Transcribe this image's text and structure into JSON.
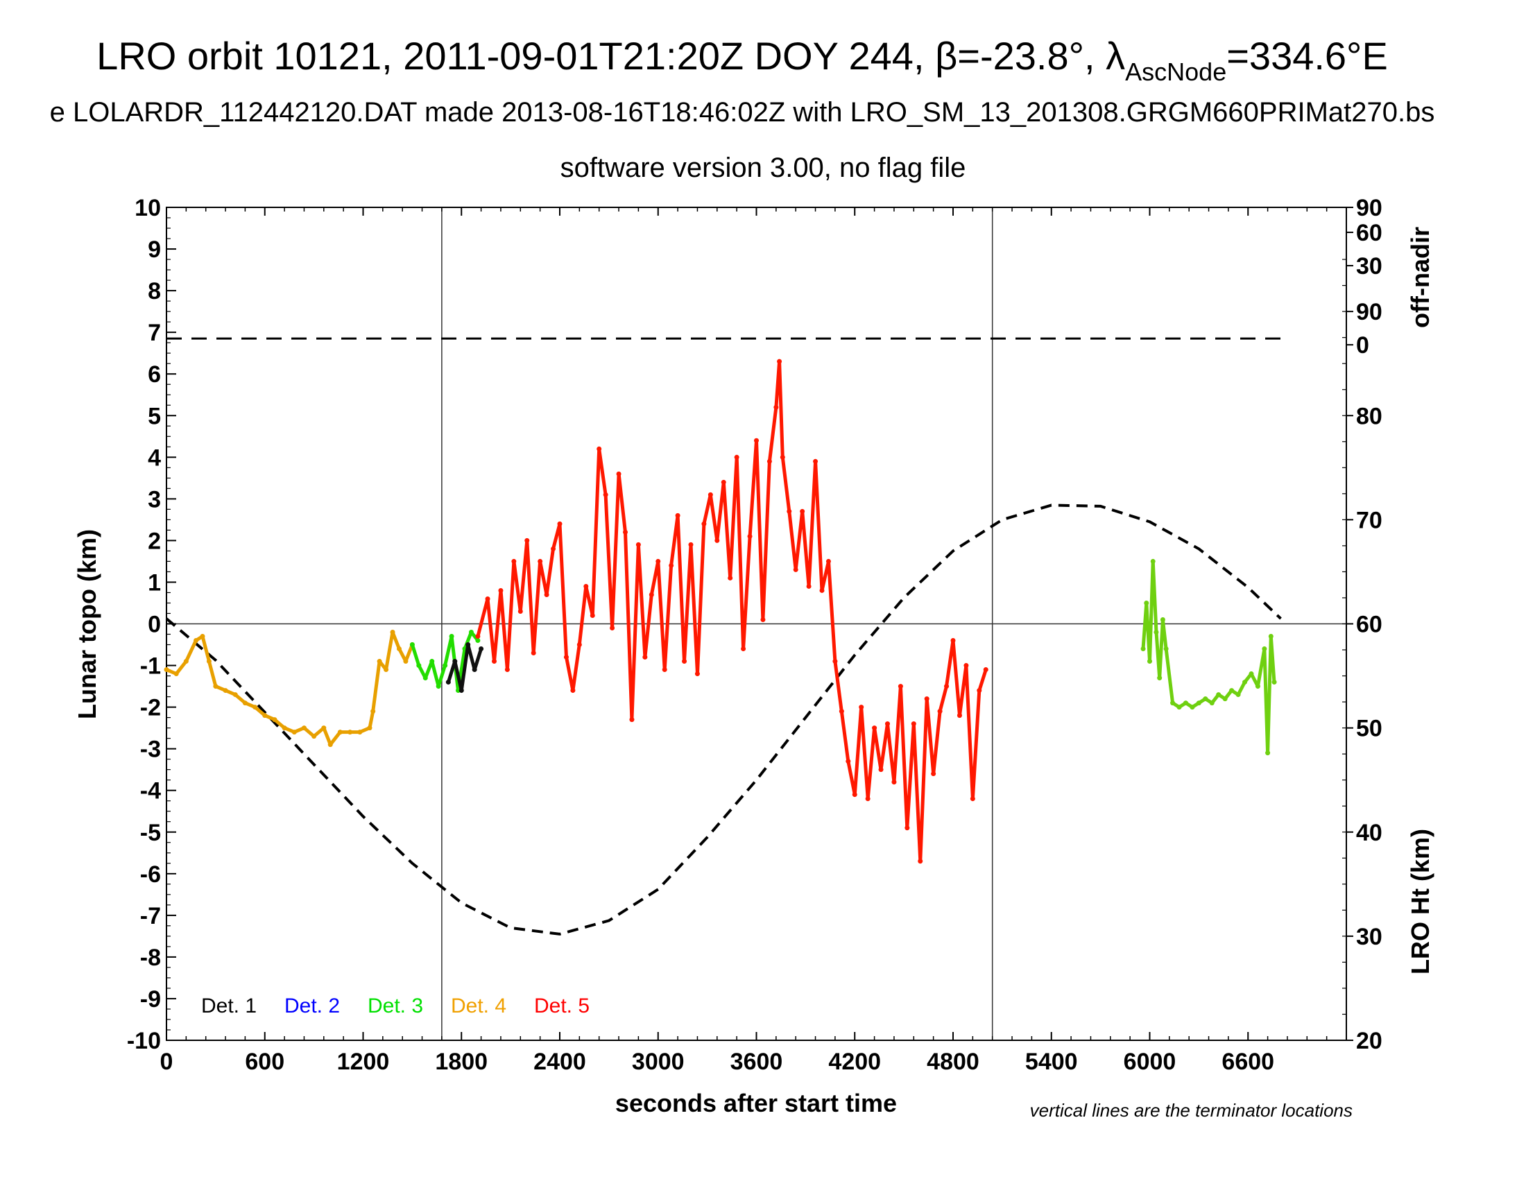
{
  "chart_data": {
    "type": "scatter",
    "title_parts": [
      "LRO orbit 10121, 2011-09-01T21:20Z DOY 244, β=-23.8°, λ",
      "AscNode",
      "=334.6°E"
    ],
    "subtitle": "e LOLARDR_112442120.DAT made 2013-08-16T18:46:02Z with LRO_SM_13_201308.GRGM660PRIMat270.bs",
    "subtitle2": "software version 3.00, no flag file",
    "xlabel": "seconds after start time",
    "ylabel": "Lunar topo (km)",
    "y2label_top": "off-nadir",
    "y2label_bottom": "LRO Ht (km)",
    "note": "vertical lines are the terminator locations",
    "xlim": [
      0,
      7200
    ],
    "ylim": [
      -10,
      10
    ],
    "xticks": [
      0,
      600,
      1200,
      1800,
      2400,
      3000,
      3600,
      4200,
      4800,
      5400,
      6000,
      6600
    ],
    "xtick_labels": [
      "0",
      "600",
      "1200",
      "1800",
      "2400",
      "3000",
      "3600",
      "4200",
      "4800",
      "5400",
      "6000",
      "6600"
    ],
    "yticks": [
      10,
      9,
      8,
      7,
      6,
      5,
      4,
      3,
      2,
      1,
      0,
      -1,
      -2,
      -3,
      -4,
      -5,
      -6,
      -7,
      -8,
      -9,
      -10
    ],
    "ytick_labels": [
      "10",
      "9",
      "8",
      "7",
      "6",
      "5",
      "4",
      "3",
      "2",
      "1",
      "0",
      "-1",
      "-2",
      "-3",
      "-4",
      "-5",
      "-6",
      "-7",
      "-8",
      "-9",
      "-10"
    ],
    "offnadir_ticks": [
      {
        "label": "90",
        "y": 10
      },
      {
        "label": "60",
        "y": 9.4
      },
      {
        "label": "30",
        "y": 8.6
      },
      {
        "label": "0",
        "y": 6.7
      }
    ],
    "lro_ht_range": [
      20,
      100
    ],
    "lro_ht_ticks": [
      90,
      80,
      70,
      60,
      50,
      40,
      30,
      20
    ],
    "terminators": [
      1680,
      5040
    ],
    "offnadir_level_y": 6.85,
    "lro_ht": {
      "x": [
        0,
        300,
        600,
        900,
        1200,
        1500,
        1800,
        2100,
        2400,
        2700,
        3000,
        3300,
        3600,
        3900,
        4200,
        4500,
        4800,
        5100,
        5400,
        5700,
        6000,
        6300,
        6600,
        6800
      ],
      "y": [
        60.5,
        56.5,
        51.5,
        46.5,
        41.5,
        37.0,
        33.2,
        30.8,
        30.2,
        31.5,
        34.5,
        39.5,
        45.0,
        51.0,
        57.0,
        62.5,
        67.0,
        70.0,
        71.4,
        71.3,
        69.8,
        67.2,
        63.5,
        60.5
      ]
    },
    "legend": [
      {
        "name": "Det. 1",
        "color": "#000000"
      },
      {
        "name": "Det. 2",
        "color": "#0000ff"
      },
      {
        "name": "Det. 3",
        "color": "#00e000"
      },
      {
        "name": "Det. 4",
        "color": "#f0a000"
      },
      {
        "name": "Det. 5",
        "color": "#ff0000"
      }
    ],
    "series": [
      {
        "name": "Det. 4",
        "color": "#e8a000",
        "x": [
          0,
          60,
          120,
          180,
          220,
          260,
          300,
          360,
          420,
          480,
          540,
          600,
          660,
          720,
          780,
          840,
          900,
          960,
          1000,
          1060,
          1120,
          1180,
          1240,
          1260,
          1300,
          1340,
          1380,
          1420,
          1460,
          1500
        ],
        "y": [
          -1.1,
          -1.2,
          -0.9,
          -0.4,
          -0.3,
          -0.9,
          -1.5,
          -1.6,
          -1.7,
          -1.9,
          -2.0,
          -2.2,
          -2.3,
          -2.5,
          -2.6,
          -2.5,
          -2.7,
          -2.5,
          -2.9,
          -2.6,
          -2.6,
          -2.6,
          -2.5,
          -2.1,
          -0.9,
          -1.1,
          -0.2,
          -0.6,
          -0.9,
          -0.5
        ]
      },
      {
        "name": "Det. 3",
        "color": "#22dd00",
        "x": [
          1500,
          1540,
          1580,
          1620,
          1660,
          1700,
          1740,
          1780,
          1820,
          1860,
          1900
        ],
        "y": [
          -0.5,
          -1.0,
          -1.3,
          -0.9,
          -1.5,
          -1.0,
          -0.3,
          -1.6,
          -0.6,
          -0.2,
          -0.4
        ]
      },
      {
        "name": "Det. 1",
        "color": "#101010",
        "x": [
          1720,
          1760,
          1800,
          1840,
          1880,
          1920
        ],
        "y": [
          -1.4,
          -0.9,
          -1.6,
          -0.5,
          -1.1,
          -0.6
        ]
      },
      {
        "name": "Det. 5",
        "color": "#ff1800",
        "x": [
          1900,
          1960,
          2000,
          2040,
          2080,
          2120,
          2160,
          2200,
          2240,
          2280,
          2320,
          2360,
          2400,
          2440,
          2480,
          2520,
          2560,
          2600,
          2640,
          2680,
          2720,
          2760,
          2800,
          2840,
          2880,
          2920,
          2960,
          3000,
          3040,
          3080,
          3120,
          3160,
          3200,
          3240,
          3280,
          3320,
          3360,
          3400,
          3440,
          3480,
          3520,
          3560,
          3600,
          3640,
          3680,
          3720,
          3740,
          3760,
          3800,
          3840,
          3880,
          3920,
          3960,
          4000,
          4040,
          4080,
          4120,
          4160,
          4200,
          4240,
          4280,
          4320,
          4360,
          4400,
          4440,
          4480,
          4520,
          4560,
          4600,
          4640,
          4680,
          4720,
          4760,
          4800,
          4840,
          4880,
          4920,
          4960,
          5000
        ],
        "y": [
          -0.3,
          0.6,
          -0.9,
          0.8,
          -1.1,
          1.5,
          0.3,
          2.0,
          -0.7,
          1.5,
          0.7,
          1.8,
          2.4,
          -0.8,
          -1.6,
          -0.5,
          0.9,
          0.2,
          4.2,
          3.1,
          -0.1,
          3.6,
          2.2,
          -2.3,
          1.9,
          -0.8,
          0.7,
          1.5,
          -1.1,
          1.4,
          2.6,
          -0.9,
          1.9,
          -1.2,
          2.4,
          3.1,
          2.0,
          3.4,
          1.1,
          4.0,
          -0.6,
          2.1,
          4.4,
          0.1,
          3.9,
          5.2,
          6.3,
          4.0,
          2.7,
          1.3,
          2.7,
          0.9,
          3.9,
          0.8,
          1.5,
          -0.9,
          -2.1,
          -3.3,
          -4.1,
          -2.0,
          -4.2,
          -2.5,
          -3.5,
          -2.4,
          -3.8,
          -1.5,
          -4.9,
          -2.4,
          -5.7,
          -1.8,
          -3.6,
          -2.1,
          -1.5,
          -0.4,
          -2.2,
          -1.0,
          -4.2,
          -1.6,
          -1.1
        ]
      },
      {
        "name": "Det. 3",
        "color": "#6fd010",
        "x": [
          5960,
          5980,
          6000,
          6020,
          6040,
          6060,
          6080,
          6100,
          6140,
          6180,
          6220,
          6260,
          6300,
          6340,
          6380,
          6420,
          6460,
          6500,
          6540,
          6580,
          6620,
          6660,
          6700,
          6720,
          6740,
          6760
        ],
        "y": [
          -0.6,
          0.5,
          -0.9,
          1.5,
          -0.2,
          -1.3,
          0.1,
          -0.6,
          -1.9,
          -2.0,
          -1.9,
          -2.0,
          -1.9,
          -1.8,
          -1.9,
          -1.7,
          -1.8,
          -1.6,
          -1.7,
          -1.4,
          -1.2,
          -1.5,
          -0.6,
          -3.1,
          -0.3,
          -1.4
        ]
      }
    ]
  }
}
